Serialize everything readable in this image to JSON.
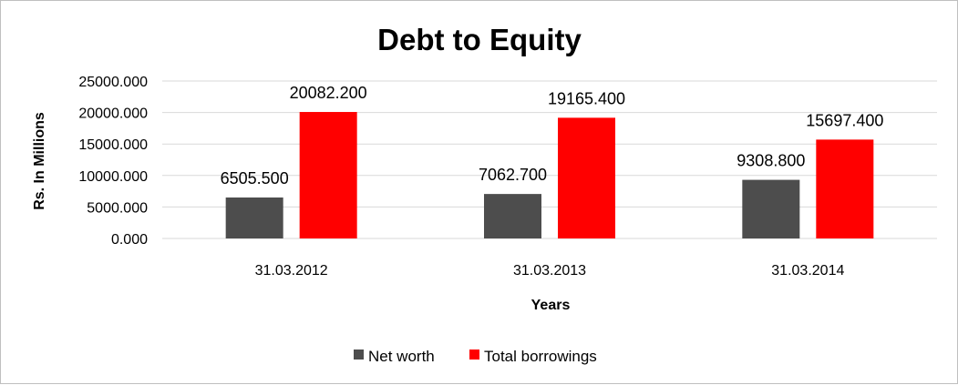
{
  "chart_data": {
    "type": "bar",
    "title": "Debt to Equity",
    "xlabel": "Years",
    "ylabel": "Rs. In Millions",
    "categories": [
      "31.03.2012",
      "31.03.2013",
      "31.03.2014"
    ],
    "series": [
      {
        "name": "Net worth",
        "values": [
          6505.5,
          7062.7,
          9308.8
        ],
        "labels": [
          "6505.500",
          "7062.700",
          "9308.800"
        ],
        "color": "#4d4d4d"
      },
      {
        "name": "Total borrowings",
        "values": [
          20082.2,
          19165.4,
          15697.4
        ],
        "labels": [
          "20082.200",
          "19165.400",
          "15697.400"
        ],
        "color": "#ff0000"
      }
    ],
    "ylim": [
      0,
      25000
    ],
    "yticks": [
      0,
      5000,
      10000,
      15000,
      20000,
      25000
    ],
    "ytick_labels": [
      "0.000",
      "5000.000",
      "10000.000",
      "15000.000",
      "20000.000",
      "25000.000"
    ],
    "grid": true,
    "legend_position": "bottom"
  }
}
